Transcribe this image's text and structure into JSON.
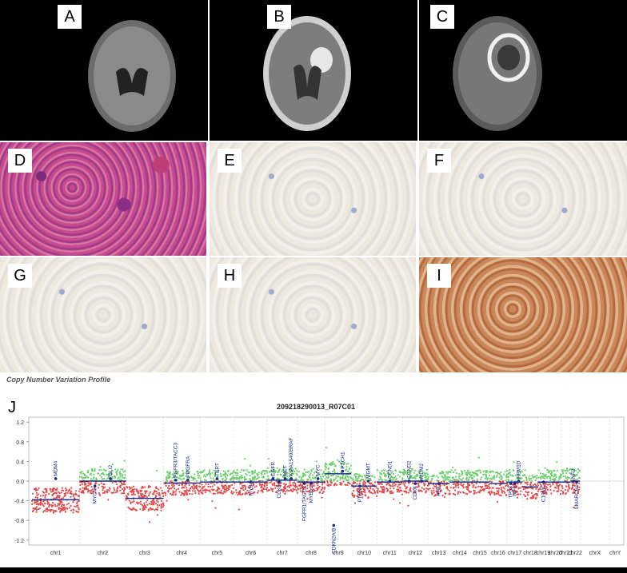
{
  "panels": {
    "A": "A",
    "B": "B",
    "C": "C",
    "D": "D",
    "E": "E",
    "F": "F",
    "G": "G",
    "H": "H",
    "I": "I",
    "J": "J"
  },
  "cnv_title": "Copy Number Variation Profile",
  "chart_data": {
    "type": "scatter",
    "title": "209218290013_R07C01",
    "ylim": [
      -1.3,
      1.3
    ],
    "yticks": [
      1.2,
      0.8,
      0.4,
      0.0,
      -0.4,
      -0.8,
      -1.2
    ],
    "ytick_labels": [
      "1.2",
      "0.8",
      "0.4",
      "0.0",
      "-0.4",
      "-0.8",
      "-1.2"
    ],
    "chromosomes": [
      "chr1",
      "chr2",
      "chr3",
      "chr4",
      "chr5",
      "chr6",
      "chr7",
      "chr8",
      "chr9",
      "chr10",
      "chr11",
      "chr12",
      "chr13",
      "chr14",
      "chr15",
      "chr16",
      "chr17",
      "chr18",
      "chr19",
      "chr20",
      "chr21",
      "chr22",
      "chrX",
      "chrY"
    ],
    "segments": [
      {
        "chr": "chr1",
        "value": -0.38
      },
      {
        "chr": "chr2",
        "value": 0.0
      },
      {
        "chr": "chr3",
        "value": -0.35
      },
      {
        "chr": "chr4",
        "value": -0.04
      },
      {
        "chr": "chr5",
        "value": -0.02
      },
      {
        "chr": "chr6",
        "value": -0.02
      },
      {
        "chr": "chr7",
        "value": 0.02
      },
      {
        "chr": "chr8",
        "value": -0.02
      },
      {
        "chr": "chr9",
        "value": 0.15
      },
      {
        "chr": "chr10",
        "value": -0.1
      },
      {
        "chr": "chr11",
        "value": -0.02
      },
      {
        "chr": "chr12",
        "value": 0.0
      },
      {
        "chr": "chr13",
        "value": -0.05
      },
      {
        "chr": "chr14",
        "value": -0.02
      },
      {
        "chr": "chr15",
        "value": -0.02
      },
      {
        "chr": "chr16",
        "value": -0.05
      },
      {
        "chr": "chr17",
        "value": -0.02
      },
      {
        "chr": "chr18",
        "value": -0.12
      },
      {
        "chr": "chr19",
        "value": -0.02
      },
      {
        "chr": "chr20",
        "value": -0.02
      },
      {
        "chr": "chr21",
        "value": -0.02
      },
      {
        "chr": "chr22",
        "value": 0.0
      }
    ],
    "genes": [
      {
        "name": "MDM4",
        "chr": "chr1",
        "value": 0.05,
        "side": "up"
      },
      {
        "name": "MYCN",
        "chr": "chr2",
        "value": -0.1,
        "side": "down"
      },
      {
        "name": "GLI2",
        "chr": "chr2",
        "value": 0.05,
        "side": "up"
      },
      {
        "name": "FGFR3/TACC3",
        "chr": "chr4",
        "value": 0.02,
        "side": "up"
      },
      {
        "name": "PDGFRA",
        "chr": "chr4",
        "value": 0.02,
        "side": "up"
      },
      {
        "name": "TERT",
        "chr": "chr5",
        "value": 0.05,
        "side": "up"
      },
      {
        "name": "MYB",
        "chr": "chr6",
        "value": -0.02,
        "side": "down"
      },
      {
        "name": "EGFR",
        "chr": "chr7",
        "value": 0.05,
        "side": "up"
      },
      {
        "name": "CDK6",
        "chr": "chr7",
        "value": -0.02,
        "side": "down"
      },
      {
        "name": "MET",
        "chr": "chr7",
        "value": 0.05,
        "side": "up"
      },
      {
        "name": "KIAA1549/BRAF",
        "chr": "chr7",
        "value": 0.05,
        "side": "up"
      },
      {
        "name": "FGFR1/TACC1",
        "chr": "chr8",
        "value": -0.05,
        "side": "down"
      },
      {
        "name": "MYBL1",
        "chr": "chr8",
        "value": -0.05,
        "side": "down"
      },
      {
        "name": "MYC",
        "chr": "chr8",
        "value": 0.05,
        "side": "up"
      },
      {
        "name": "CDKN2A/B",
        "chr": "chr9",
        "value": -0.9,
        "side": "down"
      },
      {
        "name": "PTCH1",
        "chr": "chr9",
        "value": 0.2,
        "side": "up"
      },
      {
        "name": "PTEN",
        "chr": "chr10",
        "value": -0.1,
        "side": "down"
      },
      {
        "name": "MGMT",
        "chr": "chr10",
        "value": 0.0,
        "side": "up"
      },
      {
        "name": "CCND1",
        "chr": "chr11",
        "value": 0.0,
        "side": "up"
      },
      {
        "name": "CCND2",
        "chr": "chr12",
        "value": 0.0,
        "side": "up"
      },
      {
        "name": "CDK4",
        "chr": "chr12",
        "value": -0.05,
        "side": "down"
      },
      {
        "name": "MDM2",
        "chr": "chr12",
        "value": 0.0,
        "side": "up"
      },
      {
        "name": "RB1",
        "chr": "chr13",
        "value": -0.05,
        "side": "down"
      },
      {
        "name": "TP53",
        "chr": "chr17",
        "value": -0.05,
        "side": "down"
      },
      {
        "name": "NF1",
        "chr": "chr17",
        "value": -0.05,
        "side": "down"
      },
      {
        "name": "PPM1D",
        "chr": "chr17",
        "value": 0.0,
        "side": "up"
      },
      {
        "name": "C19MC",
        "chr": "chr19",
        "value": -0.02,
        "side": "down"
      },
      {
        "name": "NF2",
        "chr": "chr22",
        "value": 0.0,
        "side": "up"
      },
      {
        "name": "SMARCB1",
        "chr": "chr22",
        "value": -0.02,
        "side": "down"
      }
    ]
  }
}
